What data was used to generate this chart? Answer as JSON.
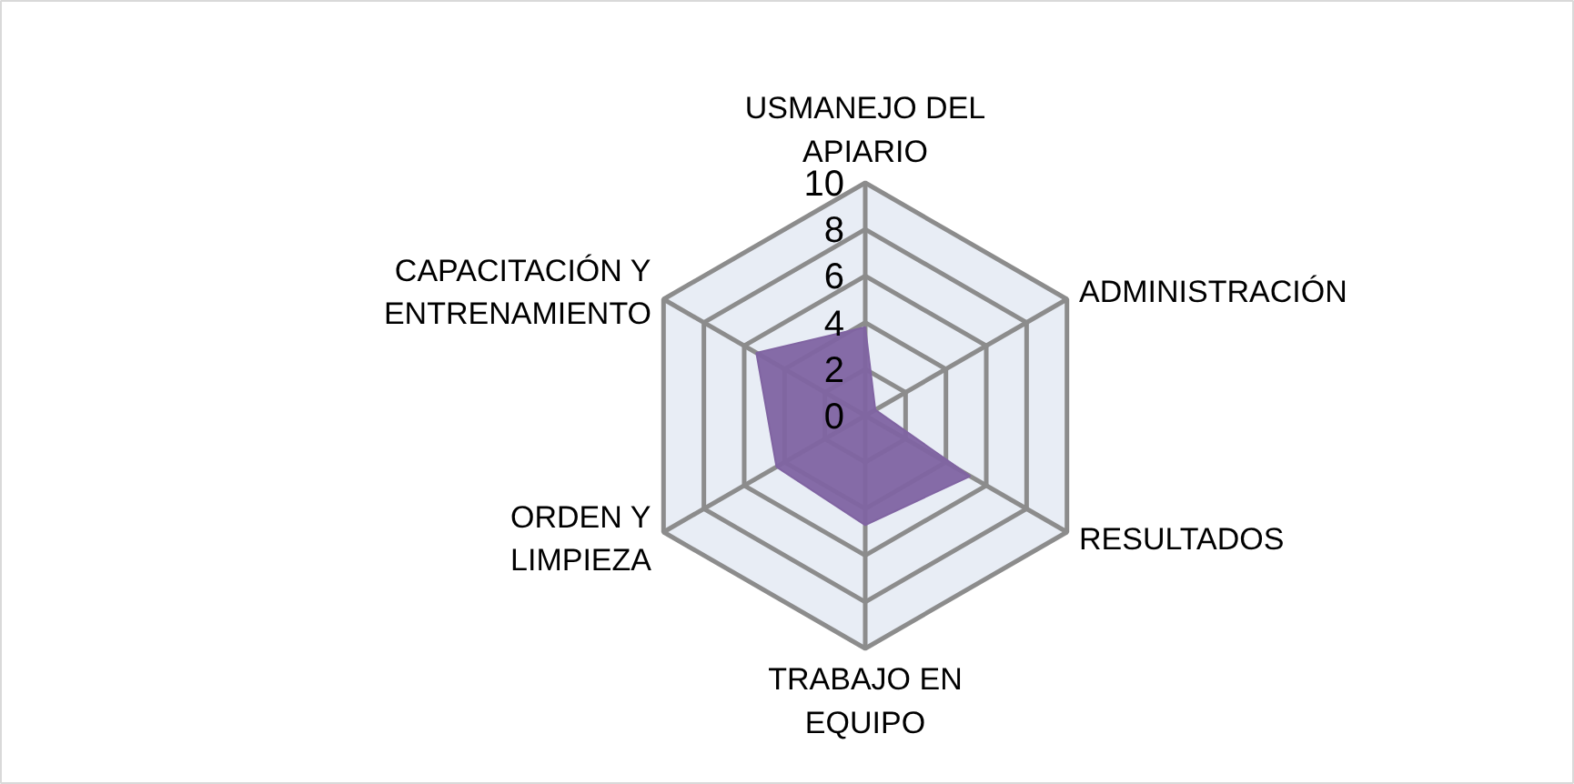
{
  "chart_data": {
    "type": "radar",
    "categories": [
      "USMANEJO DEL APIARIO",
      "ADMINISTRACIÓN",
      "RESULTADOS",
      "TRABAJO EN EQUIPO",
      "ORDEN Y LIMPIEZA",
      "CAPACITACIÓN Y ENTRENAMIENTO"
    ],
    "series": [
      {
        "color": "#8064a2",
        "values": [
          3.8,
          0.5,
          5.2,
          4.7,
          4.4,
          5.4
        ]
      }
    ],
    "ylim": [
      0,
      10
    ],
    "yticks": [
      0,
      2,
      4,
      6,
      8,
      10
    ],
    "grid": true
  }
}
